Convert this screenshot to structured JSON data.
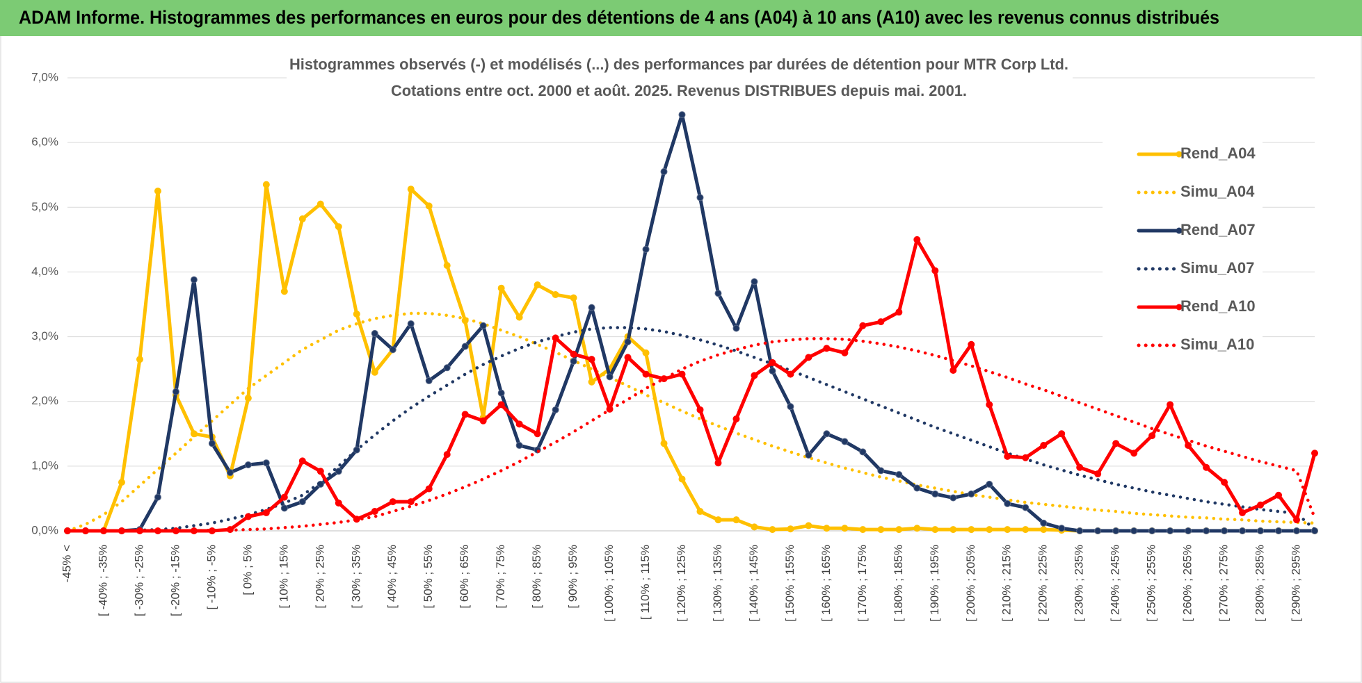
{
  "chart_data": {
    "type": "line",
    "title": "ADAM Informe. Histogrammes des performances en euros pour des détentions de 4 ans (A04) à 10 ans (A10) avec les revenus connus distribués",
    "subtitle": [
      "Histogrammes observés (-) et modélisés (...) des performances par durées de détention pour MTR Corp Ltd.",
      "Cotations entre oct. 2000 et août. 2025. Revenus DISTRIBUES depuis mai. 2001."
    ],
    "categories": [
      "-45% <",
      null,
      "[ -40% ; -35%",
      null,
      "[ -30% ; -25%",
      null,
      "[ -20% ; -15%",
      null,
      "[ -10% ; -5%",
      null,
      "[ 0% ; 5%",
      null,
      "[ 10% ; 15%",
      null,
      "[ 20% ; 25%",
      null,
      "[ 30% ; 35%",
      null,
      "[ 40% ; 45%",
      null,
      "[ 50% ; 55%",
      null,
      "[ 60% ; 65%",
      null,
      "[ 70% ; 75%",
      null,
      "[ 80% ; 85%",
      null,
      "[ 90% ; 95%",
      null,
      "[ 100% ; 105%",
      null,
      "[ 110% ; 115%",
      null,
      "[ 120% ; 125%",
      null,
      "[ 130% ; 135%",
      null,
      "[ 140% ; 145%",
      null,
      "[ 150% ; 155%",
      null,
      "[ 160% ; 165%",
      null,
      "[ 170% ; 175%",
      null,
      "[ 180% ; 185%",
      null,
      "[ 190% ; 195%",
      null,
      "[ 200% ; 205%",
      null,
      "[ 210% ; 215%",
      null,
      "[ 220% ; 225%",
      null,
      "[ 230% ; 235%",
      null,
      "[ 240% ; 245%",
      null,
      "[ 250% ; 255%",
      null,
      "[ 260% ; 265%",
      null,
      "[ 270% ; 275%",
      null,
      "[ 280% ; 285%",
      null,
      "[ 290% ; 295%",
      null
    ],
    "series": [
      {
        "name": "Rend_A04",
        "color": "#ffc000",
        "style": "solid",
        "values": [
          0,
          0,
          0,
          0.75,
          2.65,
          5.25,
          2.1,
          1.5,
          1.45,
          0.85,
          2.05,
          5.35,
          3.7,
          4.82,
          5.05,
          4.7,
          3.35,
          2.45,
          2.8,
          5.28,
          5.02,
          4.1,
          3.25,
          1.75,
          3.75,
          3.3,
          3.8,
          3.65,
          3.6,
          2.3,
          2.5,
          3.0,
          2.75,
          1.35,
          0.8,
          0.3,
          0.17,
          0.17,
          0.06,
          0.02,
          0.03,
          0.08,
          0.04,
          0.04,
          0.02,
          0.02,
          0.02,
          0.04,
          0.02,
          0.02,
          0.02,
          0.02,
          0.02,
          0.02,
          0.02,
          0.01,
          0,
          0,
          0,
          0,
          0,
          0,
          0,
          0,
          0,
          0,
          0,
          0,
          0,
          0
        ]
      },
      {
        "name": "Simu_A04",
        "color": "#ffc000",
        "style": "dotted",
        "values": [
          0.0,
          0.1,
          0.25,
          0.45,
          0.7,
          0.95,
          1.2,
          1.45,
          1.7,
          1.95,
          2.2,
          2.4,
          2.6,
          2.8,
          2.95,
          3.1,
          3.2,
          3.28,
          3.33,
          3.36,
          3.36,
          3.33,
          3.28,
          3.2,
          3.1,
          3.0,
          2.88,
          2.76,
          2.63,
          2.5,
          2.37,
          2.24,
          2.1,
          1.98,
          1.85,
          1.73,
          1.62,
          1.51,
          1.41,
          1.31,
          1.22,
          1.13,
          1.05,
          0.97,
          0.9,
          0.83,
          0.77,
          0.71,
          0.66,
          0.61,
          0.56,
          0.52,
          0.48,
          0.44,
          0.41,
          0.38,
          0.35,
          0.32,
          0.3,
          0.27,
          0.25,
          0.23,
          0.21,
          0.2,
          0.18,
          0.17,
          0.15,
          0.14,
          0.13,
          0.12
        ]
      },
      {
        "name": "Rend_A07",
        "color": "#203864",
        "style": "solid",
        "values": [
          0,
          0,
          0,
          0,
          0.02,
          0.52,
          2.15,
          3.88,
          1.35,
          0.9,
          1.02,
          1.05,
          0.35,
          0.45,
          0.72,
          0.92,
          1.25,
          3.05,
          2.8,
          3.2,
          2.32,
          2.52,
          2.85,
          3.17,
          2.13,
          1.32,
          1.25,
          1.87,
          2.62,
          3.45,
          2.38,
          2.92,
          4.35,
          5.55,
          6.43,
          5.15,
          3.67,
          3.13,
          3.85,
          2.47,
          1.92,
          1.17,
          1.5,
          1.38,
          1.22,
          0.93,
          0.87,
          0.66,
          0.57,
          0.51,
          0.57,
          0.72,
          0.42,
          0.36,
          0.12,
          0.04,
          0,
          0,
          0,
          0,
          0,
          0,
          0,
          0,
          0,
          0,
          0,
          0,
          0,
          0
        ]
      },
      {
        "name": "Simu_A07",
        "color": "#203864",
        "style": "dotted",
        "values": [
          0,
          0,
          0,
          0,
          0.01,
          0.02,
          0.04,
          0.08,
          0.12,
          0.18,
          0.25,
          0.33,
          0.43,
          0.55,
          0.75,
          1.0,
          1.25,
          1.48,
          1.7,
          1.9,
          2.08,
          2.25,
          2.42,
          2.57,
          2.7,
          2.82,
          2.92,
          3.0,
          3.07,
          3.12,
          3.14,
          3.14,
          3.12,
          3.08,
          3.02,
          2.95,
          2.87,
          2.78,
          2.68,
          2.58,
          2.48,
          2.37,
          2.26,
          2.15,
          2.04,
          1.93,
          1.82,
          1.71,
          1.6,
          1.5,
          1.4,
          1.3,
          1.2,
          1.11,
          1.02,
          0.94,
          0.86,
          0.79,
          0.72,
          0.66,
          0.6,
          0.55,
          0.5,
          0.45,
          0.41,
          0.37,
          0.33,
          0.3,
          0.27,
          0.02
        ]
      },
      {
        "name": "Rend_A10",
        "color": "#ff0000",
        "style": "solid",
        "values": [
          0,
          0,
          0,
          0,
          0,
          0,
          0,
          0,
          0,
          0.02,
          0.22,
          0.28,
          0.52,
          1.08,
          0.92,
          0.43,
          0.18,
          0.3,
          0.45,
          0.45,
          0.65,
          1.18,
          1.8,
          1.7,
          1.95,
          1.65,
          1.5,
          2.98,
          2.73,
          2.65,
          1.88,
          2.68,
          2.42,
          2.35,
          2.42,
          1.87,
          1.05,
          1.73,
          2.4,
          2.6,
          2.42,
          2.68,
          2.82,
          2.75,
          3.17,
          3.23,
          3.38,
          4.5,
          4.02,
          2.48,
          2.88,
          1.95,
          1.15,
          1.13,
          1.32,
          1.5,
          0.98,
          0.88,
          1.35,
          1.2,
          1.47,
          1.95,
          1.32,
          0.98,
          0.75,
          0.28,
          0.4,
          0.55,
          0.17,
          1.2
        ]
      },
      {
        "name": "Simu_A10",
        "color": "#ff0000",
        "style": "dotted",
        "values": [
          0,
          0,
          0,
          0,
          0,
          0,
          0,
          0,
          0.01,
          0.01,
          0.02,
          0.03,
          0.05,
          0.07,
          0.1,
          0.13,
          0.17,
          0.22,
          0.3,
          0.38,
          0.47,
          0.57,
          0.68,
          0.8,
          0.93,
          1.07,
          1.22,
          1.37,
          1.53,
          1.7,
          1.87,
          2.03,
          2.2,
          2.35,
          2.5,
          2.62,
          2.72,
          2.8,
          2.87,
          2.92,
          2.95,
          2.97,
          2.97,
          2.96,
          2.93,
          2.89,
          2.84,
          2.78,
          2.71,
          2.63,
          2.55,
          2.46,
          2.37,
          2.27,
          2.18,
          2.08,
          1.98,
          1.88,
          1.78,
          1.68,
          1.58,
          1.49,
          1.4,
          1.31,
          1.23,
          1.15,
          1.07,
          1.0,
          0.93,
          0.2
        ]
      }
    ],
    "ylim": [
      0,
      7
    ],
    "yticks": [
      {
        "value": 0,
        "label": "0,0%"
      },
      {
        "value": 1,
        "label": "1,0%"
      },
      {
        "value": 2,
        "label": "2,0%"
      },
      {
        "value": 3,
        "label": "3,0%"
      },
      {
        "value": 4,
        "label": "4,0%"
      },
      {
        "value": 5,
        "label": "5,0%"
      },
      {
        "value": 6,
        "label": "6,0%"
      },
      {
        "value": 7,
        "label": "7,0%"
      }
    ],
    "grid": true,
    "legend": "right"
  }
}
